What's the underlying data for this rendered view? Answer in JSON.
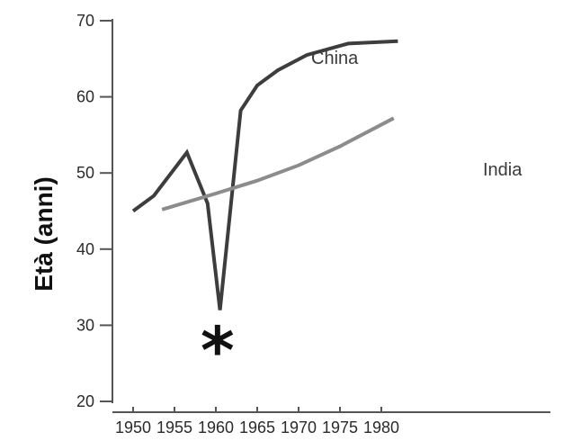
{
  "chart_data": {
    "type": "line",
    "title": "",
    "xlabel": "",
    "ylabel": "Età (anni)",
    "xlim": [
      1949,
      1983
    ],
    "ylim": [
      20,
      70
    ],
    "x_ticks": [
      1950,
      1955,
      1960,
      1965,
      1970,
      1975,
      1980
    ],
    "y_ticks": [
      20,
      30,
      40,
      50,
      60,
      70
    ],
    "grid": false,
    "colors": {
      "axis": "#555555",
      "China": "#3d3d3d",
      "India": "#8c8c8c"
    },
    "series": [
      {
        "name": "China",
        "x": [
          1950,
          1952.5,
          1956.5,
          1959,
          1960.5,
          1963,
          1965,
          1967.5,
          1971,
          1976,
          1982
        ],
        "y": [
          45,
          47,
          52.7,
          46,
          32,
          58.2,
          61.5,
          63.5,
          65.5,
          67,
          67.3
        ]
      },
      {
        "name": "India",
        "x": [
          1953.5,
          1960,
          1965,
          1970,
          1975,
          1981.5
        ],
        "y": [
          45.2,
          47.3,
          49,
          51,
          53.5,
          57.2
        ]
      }
    ],
    "annotations": [
      {
        "text": "*",
        "x": 1960.2,
        "y": 28.2
      }
    ]
  }
}
